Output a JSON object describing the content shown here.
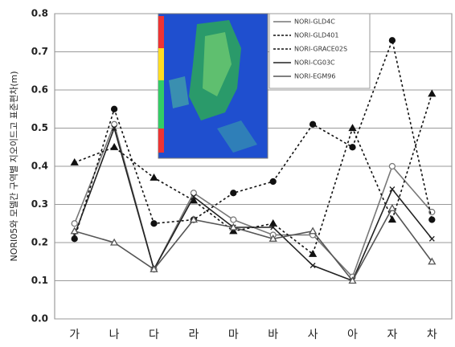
{
  "chart_data": {
    "type": "line",
    "y_label": "NORI05와 모델간 구역별 지오이드고 표준편차(m)",
    "categories": [
      "가",
      "나",
      "다",
      "라",
      "마",
      "바",
      "사",
      "아",
      "자",
      "차"
    ],
    "series": [
      {
        "name": "NORI-GLD4C",
        "color": "#777777",
        "marker": "open-circle",
        "dash": false,
        "values": [
          0.25,
          0.51,
          0.13,
          0.33,
          0.26,
          0.22,
          0.22,
          0.11,
          0.4,
          0.28
        ]
      },
      {
        "name": "NORI-GLD401",
        "color": "#111111",
        "marker": "triangle",
        "dash": true,
        "values": [
          0.41,
          0.45,
          0.37,
          0.31,
          0.23,
          0.25,
          0.17,
          0.5,
          0.26,
          0.59
        ]
      },
      {
        "name": "NORI-GRACE02S",
        "color": "#111111",
        "marker": "circle",
        "dash": true,
        "values": [
          0.21,
          0.55,
          0.25,
          0.26,
          0.33,
          0.36,
          0.51,
          0.45,
          0.73,
          0.26
        ]
      },
      {
        "name": "NORI-CG03C",
        "color": "#222222",
        "marker": "cross",
        "dash": false,
        "values": [
          0.22,
          0.5,
          0.13,
          0.32,
          0.24,
          0.24,
          0.14,
          0.1,
          0.34,
          0.21
        ]
      },
      {
        "name": "NORI-EGM96",
        "color": "#555555",
        "marker": "open-triangle",
        "dash": false,
        "values": [
          0.23,
          0.2,
          0.13,
          0.26,
          0.24,
          0.21,
          0.23,
          0.1,
          0.29,
          0.15
        ]
      }
    ],
    "ylim": [
      0,
      0.8
    ],
    "yticks": [
      {
        "value": 0,
        "label": "0.0"
      },
      0.1,
      0.2,
      0.3,
      0.4,
      0.5,
      0.6,
      0.7,
      0.8
    ],
    "grid": true
  }
}
